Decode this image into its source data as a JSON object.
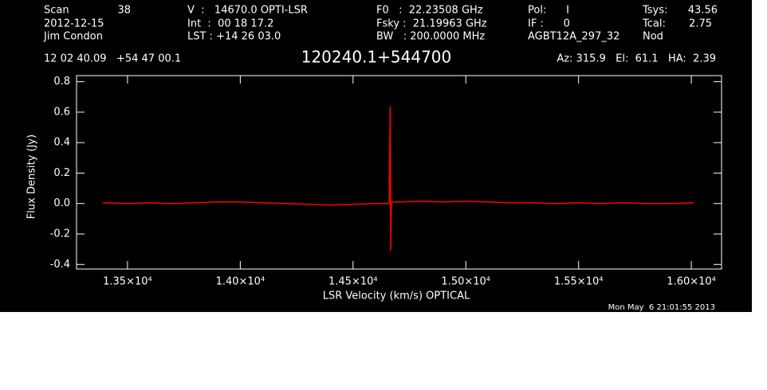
{
  "header": {
    "texts": [
      "Scan",
      "38",
      "2012-12-15",
      "Jim Condon",
      "V  :   14670.0 OPTI-LSR",
      "Int  :  00 18 17.2",
      "LST : +14 26 03.0",
      "F0   :  22.23508 GHz",
      "Fsky :  21.19963 GHz",
      "BW   : 200.0000 MHz",
      "Pol:      I",
      "IF :      0",
      "AGBT12A_297_32",
      "Tsys:",
      "43.56",
      "Tcal:",
      "2.75",
      "Nod",
      "12 02 40.09   +54 47 00.1",
      "Az: 315.9   El:  61.1   HA:  2.39"
    ],
    "footer": "Mon May  6 21:01:55 2013"
  },
  "chart_data": {
    "type": "line",
    "title": "120240.1+544700",
    "x_label": "LSR Velocity (km/s) OPTICAL",
    "y_label": "Flux Density (Jy)",
    "x": [
      13390,
      13500,
      13600,
      13700,
      13800,
      13900,
      14000,
      14100,
      14200,
      14300,
      14400,
      14500,
      14600,
      14660,
      14665,
      14667,
      14670,
      14700,
      14800,
      14900,
      15000,
      15100,
      15200,
      15300,
      15400,
      15500,
      15600,
      15700,
      15800,
      15900,
      16010
    ],
    "series": [
      {
        "color": "#ff0000",
        "values": [
          0.005,
          0,
          0.005,
          0,
          0.005,
          0.01,
          0.01,
          0.005,
          0,
          -0.005,
          -0.01,
          -0.005,
          0,
          0,
          0.64,
          -0.31,
          0.01,
          0.01,
          0.015,
          0.01,
          0.015,
          0.01,
          0.005,
          0.005,
          0,
          0.005,
          0,
          0.005,
          0,
          0,
          0.005
        ]
      }
    ],
    "xlim": [
      13274,
      16134
    ],
    "ylim": [
      -0.43,
      0.84
    ],
    "xticks": [
      {
        "value": 13500,
        "label": "1.35×10⁴"
      },
      {
        "value": 14000,
        "label": "1.40×10⁴"
      },
      {
        "value": 14500,
        "label": "1.45×10⁴"
      },
      {
        "value": 15000,
        "label": "1.50×10⁴"
      },
      {
        "value": 15500,
        "label": "1.55×10⁴"
      },
      {
        "value": 16000,
        "label": "1.60×10⁴"
      }
    ],
    "yticks": [
      {
        "value": -0.4,
        "label": "-0.4"
      },
      {
        "value": -0.2,
        "label": "-0.2"
      },
      {
        "value": 0,
        "label": "0.0"
      },
      {
        "value": 0.2,
        "label": "0.2"
      },
      {
        "value": 0.4,
        "label": "0.4"
      },
      {
        "value": 0.6,
        "label": "0.6"
      },
      {
        "value": 0.8,
        "label": "0.8"
      }
    ]
  }
}
